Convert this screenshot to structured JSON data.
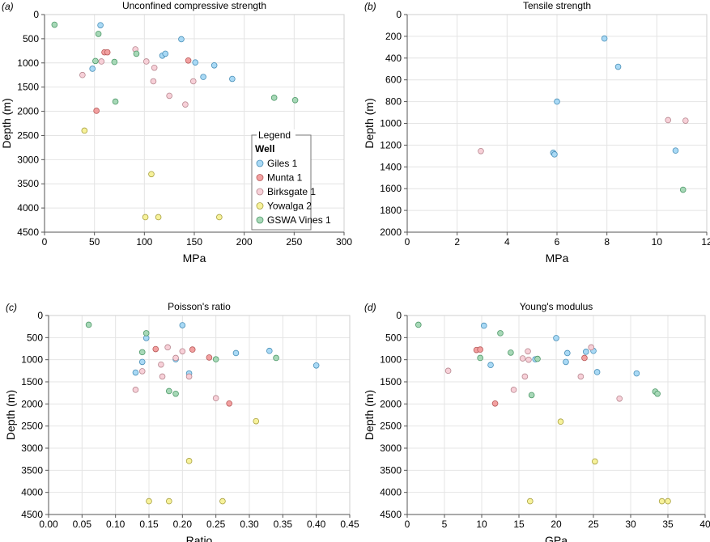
{
  "legend": {
    "title": "Legend",
    "heading": "Well",
    "items": [
      {
        "name": "Giles 1",
        "color": "#a9d9f5"
      },
      {
        "name": "Munta 1",
        "color": "#f2a0a0"
      },
      {
        "name": "Birksgate 1",
        "color": "#f7d0d8"
      },
      {
        "name": "Yowalga 2",
        "color": "#f7f29b"
      },
      {
        "name": "GSWA Vines 1",
        "color": "#a7d8b7"
      }
    ]
  },
  "chart_data": [
    {
      "type": "scatter",
      "label": "(a)",
      "title": "Unconfined compressive strength",
      "xlabel": "MPa",
      "ylabel": "Depth (m)",
      "xlim": [
        0,
        300
      ],
      "ylim": [
        0,
        4500
      ],
      "xticks": [
        "0",
        "50",
        "100",
        "150",
        "200",
        "250",
        "300"
      ],
      "yticks": [
        "0",
        "500",
        "1000",
        "1500",
        "2000",
        "2500",
        "3000",
        "3500",
        "4000",
        "4500"
      ],
      "series": [
        {
          "name": "Giles 1",
          "points": [
            [
              56,
              220
            ],
            [
              48,
              1120
            ],
            [
              118,
              850
            ],
            [
              121,
              810
            ],
            [
              137,
              510
            ],
            [
              151,
              990
            ],
            [
              159,
              1290
            ],
            [
              170,
              1050
            ],
            [
              188,
              1330
            ]
          ]
        },
        {
          "name": "Munta 1",
          "points": [
            [
              60,
              780
            ],
            [
              63,
              780
            ],
            [
              52,
              1990
            ],
            [
              144,
              950
            ]
          ]
        },
        {
          "name": "Birksgate 1",
          "points": [
            [
              38,
              1250
            ],
            [
              57,
              970
            ],
            [
              91,
              720
            ],
            [
              102,
              970
            ],
            [
              110,
              1100
            ],
            [
              109,
              1380
            ],
            [
              125,
              1680
            ],
            [
              149,
              1380
            ],
            [
              141,
              1860
            ]
          ]
        },
        {
          "name": "Yowalga 2",
          "points": [
            [
              40,
              2400
            ],
            [
              107,
              3300
            ],
            [
              101,
              4190
            ],
            [
              114,
              4190
            ],
            [
              175,
              4190
            ]
          ]
        },
        {
          "name": "GSWA Vines 1",
          "points": [
            [
              10,
              210
            ],
            [
              54,
              400
            ],
            [
              92,
              810
            ],
            [
              51,
              960
            ],
            [
              70,
              980
            ],
            [
              71,
              1800
            ],
            [
              230,
              1720
            ],
            [
              251,
              1770
            ]
          ]
        }
      ]
    },
    {
      "type": "scatter",
      "label": "(b)",
      "title": "Tensile strength",
      "xlabel": "MPa",
      "ylabel": "Depth (m)",
      "xlim": [
        0,
        12
      ],
      "ylim": [
        0,
        2000
      ],
      "xticks": [
        "0",
        "2",
        "4",
        "6",
        "8",
        "10",
        "12"
      ],
      "yticks": [
        "0",
        "200",
        "400",
        "600",
        "800",
        "1000",
        "1200",
        "1400",
        "1600",
        "1800",
        "2000"
      ],
      "series": [
        {
          "name": "Giles 1",
          "points": [
            [
              7.9,
              220
            ],
            [
              8.45,
              480
            ],
            [
              6.0,
              800
            ],
            [
              5.85,
              1270
            ],
            [
              5.9,
              1285
            ],
            [
              10.75,
              1250
            ]
          ]
        },
        {
          "name": "Birksgate 1",
          "points": [
            [
              2.95,
              1255
            ],
            [
              10.45,
              970
            ],
            [
              11.15,
              975
            ]
          ]
        },
        {
          "name": "GSWA Vines 1",
          "points": [
            [
              11.05,
              1610
            ]
          ]
        }
      ]
    },
    {
      "type": "scatter",
      "label": "(c)",
      "title": "Poisson's ratio",
      "xlabel": "Ratio",
      "ylabel": "Depth (m)",
      "xlim": [
        0,
        0.45
      ],
      "ylim": [
        0,
        4500
      ],
      "xticks": [
        "0.00",
        "0.05",
        "0.10",
        "0.15",
        "0.20",
        "0.25",
        "0.30",
        "0.35",
        "0.40",
        "0.45"
      ],
      "yticks": [
        "0",
        "500",
        "1000",
        "1500",
        "2000",
        "2500",
        "3000",
        "3500",
        "4000",
        "4500"
      ],
      "series": [
        {
          "name": "Giles 1",
          "points": [
            [
              0.2,
              220
            ],
            [
              0.146,
              510
            ],
            [
              0.14,
              1050
            ],
            [
              0.13,
              1290
            ],
            [
              0.19,
              990
            ],
            [
              0.21,
              1310
            ],
            [
              0.28,
              850
            ],
            [
              0.33,
              800
            ],
            [
              0.4,
              1130
            ]
          ]
        },
        {
          "name": "Munta 1",
          "points": [
            [
              0.16,
              760
            ],
            [
              0.215,
              770
            ],
            [
              0.24,
              950
            ],
            [
              0.27,
              1990
            ]
          ]
        },
        {
          "name": "Birksgate 1",
          "points": [
            [
              0.178,
              720
            ],
            [
              0.2,
              810
            ],
            [
              0.168,
              1110
            ],
            [
              0.14,
              1260
            ],
            [
              0.17,
              1380
            ],
            [
              0.21,
              1380
            ],
            [
              0.13,
              1680
            ],
            [
              0.25,
              1870
            ],
            [
              0.19,
              960
            ]
          ]
        },
        {
          "name": "Yowalga 2",
          "points": [
            [
              0.31,
              2390
            ],
            [
              0.21,
              3290
            ],
            [
              0.15,
              4200
            ],
            [
              0.18,
              4200
            ],
            [
              0.26,
              4200
            ]
          ]
        },
        {
          "name": "GSWA Vines 1",
          "points": [
            [
              0.06,
              210
            ],
            [
              0.146,
              400
            ],
            [
              0.14,
              830
            ],
            [
              0.25,
              990
            ],
            [
              0.34,
              960
            ],
            [
              0.18,
              1710
            ],
            [
              0.19,
              1770
            ]
          ]
        }
      ]
    },
    {
      "type": "scatter",
      "label": "(d)",
      "title": "Young's modulus",
      "xlabel": "GPa",
      "ylabel": "Depth (m)",
      "xlim": [
        0,
        40
      ],
      "ylim": [
        0,
        4500
      ],
      "xticks": [
        "0",
        "5",
        "10",
        "15",
        "20",
        "25",
        "30",
        "35",
        "40"
      ],
      "yticks": [
        "0",
        "500",
        "1000",
        "1500",
        "2000",
        "2500",
        "3000",
        "3500",
        "4000",
        "4500"
      ],
      "series": [
        {
          "name": "Giles 1",
          "points": [
            [
              10.3,
              230
            ],
            [
              20,
              510
            ],
            [
              11.2,
              1120
            ],
            [
              21.3,
              1050
            ],
            [
              24,
              820
            ],
            [
              25,
              800
            ],
            [
              21.5,
              850
            ],
            [
              25.5,
              1280
            ],
            [
              30.8,
              1310
            ],
            [
              17.2,
              990
            ]
          ]
        },
        {
          "name": "Munta 1",
          "points": [
            [
              9.3,
              780
            ],
            [
              9.8,
              770
            ],
            [
              11.8,
              1990
            ],
            [
              23.8,
              960
            ]
          ]
        },
        {
          "name": "Birksgate 1",
          "points": [
            [
              5.5,
              1250
            ],
            [
              16.2,
              810
            ],
            [
              24.7,
              720
            ],
            [
              15.5,
              970
            ],
            [
              16.3,
              1000
            ],
            [
              15.8,
              1380
            ],
            [
              14.3,
              1680
            ],
            [
              23.3,
              1380
            ],
            [
              28.5,
              1880
            ]
          ]
        },
        {
          "name": "Yowalga 2",
          "points": [
            [
              20.6,
              2400
            ],
            [
              25.2,
              3300
            ],
            [
              16.5,
              4200
            ],
            [
              34.2,
              4200
            ],
            [
              35,
              4200
            ]
          ]
        },
        {
          "name": "GSWA Vines 1",
          "points": [
            [
              1.5,
              210
            ],
            [
              12.5,
              400
            ],
            [
              13.9,
              840
            ],
            [
              9.8,
              960
            ],
            [
              17.5,
              980
            ],
            [
              16.7,
              1800
            ],
            [
              33.3,
              1720
            ],
            [
              33.6,
              1770
            ]
          ]
        }
      ]
    }
  ]
}
